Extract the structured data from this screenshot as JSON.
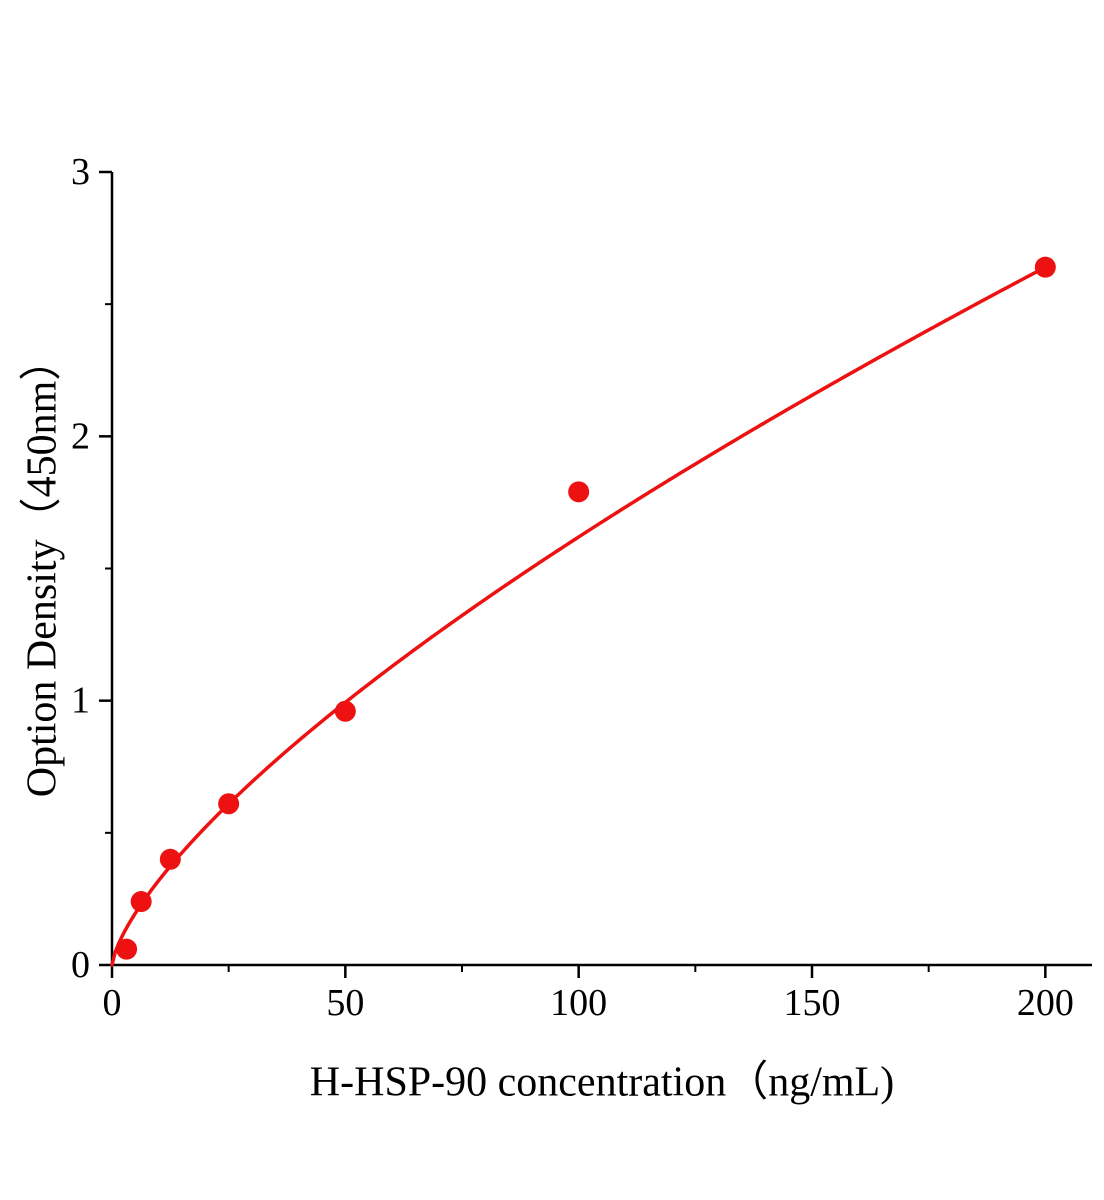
{
  "page": {
    "background": "#ffffff"
  },
  "chart_data": {
    "type": "scatter",
    "title": "",
    "xlabel": "H-HSP-90 concentration（ng/mL)",
    "ylabel": "Option Density（450nm）",
    "x": [
      3.125,
      6.25,
      12.5,
      25,
      50,
      100,
      200
    ],
    "y": [
      0.06,
      0.24,
      0.4,
      0.61,
      0.96,
      1.79,
      2.64
    ],
    "xlim": [
      0,
      210
    ],
    "ylim": [
      0,
      3
    ],
    "x_major_ticks": [
      0,
      50,
      100,
      150,
      200
    ],
    "x_minor_ticks": [
      25,
      75,
      125,
      175
    ],
    "y_major_ticks": [
      0,
      1,
      2,
      3
    ],
    "y_minor_ticks": [
      0.5,
      1.5,
      2.5
    ],
    "fit": {
      "type": "power",
      "a": 0.063,
      "b": 0.705
    },
    "point_color": "#ed1111",
    "line_color": "#ed1111",
    "axis_color": "#000000",
    "grid": false,
    "legend": "none"
  }
}
